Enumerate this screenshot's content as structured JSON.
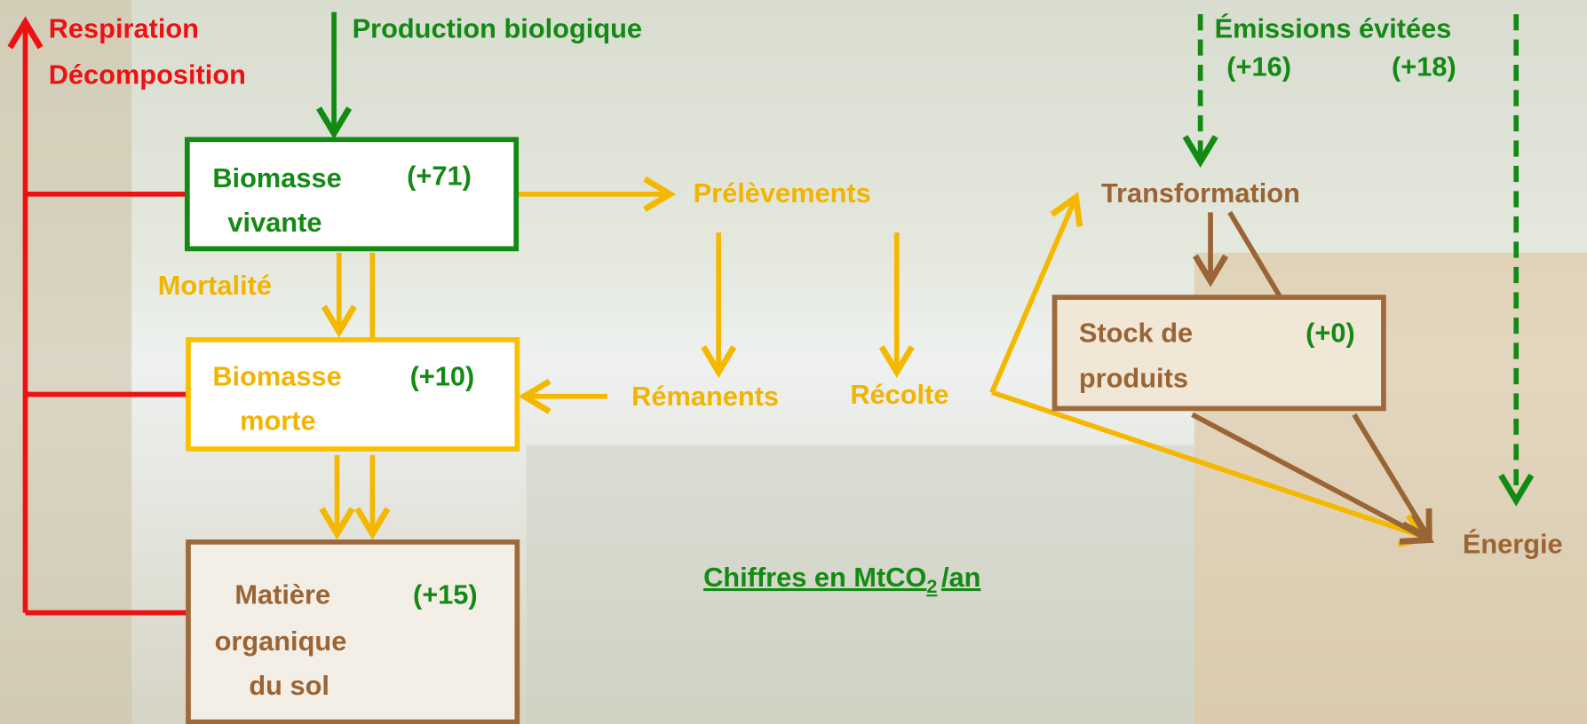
{
  "flows": {
    "respiration": [
      "Respiration",
      "Décomposition"
    ],
    "production": "Production biologique",
    "mortality": "Mortalité",
    "removals": "Prélèvements",
    "residues": "Rémanents",
    "harvest": "Récolte",
    "transformation": "Transformation",
    "energy": "Énergie"
  },
  "boxes": [
    {
      "label": [
        "Biomasse",
        "vivante"
      ],
      "value": "(+71)"
    },
    {
      "label": [
        "Biomasse",
        "morte"
      ],
      "value": "(+10)"
    },
    {
      "label": [
        "Matière",
        "organique",
        "du sol"
      ],
      "value": "(+15)"
    },
    {
      "label": [
        "Stock de",
        "produits"
      ],
      "value": "(+0)"
    }
  ],
  "avoided_emissions": {
    "label": "Émissions évitées",
    "values": [
      "(+16)",
      "(+18)"
    ]
  },
  "units": {
    "text": "Chiffres en MtCO",
    "subscript": "2",
    "suffix": "/an"
  }
}
